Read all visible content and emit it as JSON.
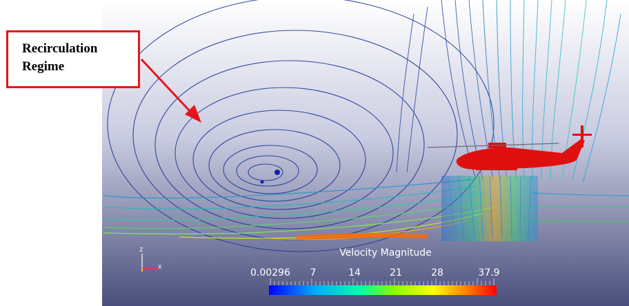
{
  "annotation": {
    "lines": [
      "Recirculation",
      "Regime"
    ],
    "box_color": "#e8141b"
  },
  "colorbar": {
    "title": "Velocity Magnitude",
    "tick_labels": [
      "0.00296",
      "7",
      "14",
      "21",
      "28",
      "37.9"
    ],
    "range": [
      0.00296,
      37.9
    ],
    "colormap": [
      "#0000ff",
      "#00ccff",
      "#00ff80",
      "#aaff00",
      "#ffff00",
      "#ff8800",
      "#ff0000"
    ]
  },
  "axes_triad": {
    "labels": [
      "Z",
      "X"
    ]
  },
  "colors": {
    "background_top": "#ffffff",
    "background_bottom": "#4a4f7c",
    "helicopter": "#e01010",
    "streamline_low": "#1a2a8a"
  }
}
